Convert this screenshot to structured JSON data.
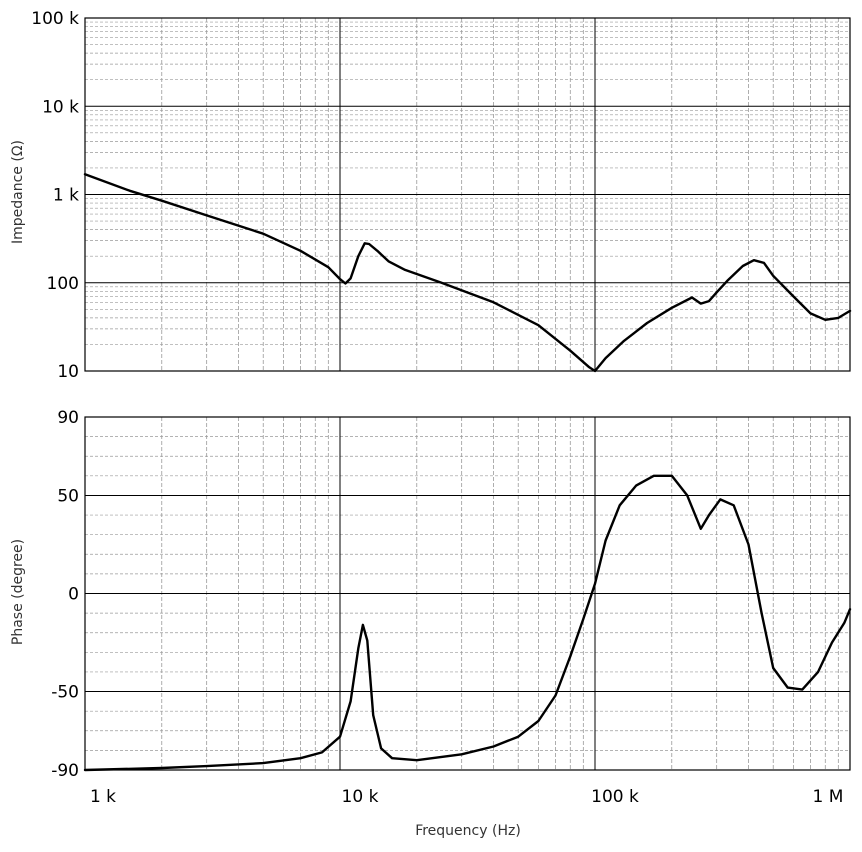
{
  "chart_data": [
    {
      "type": "line",
      "ylabel": "Impedance (Ω)",
      "x_scale": "log",
      "y_scale": "log",
      "xlim": [
        1000,
        1000000
      ],
      "ylim": [
        10,
        100000
      ],
      "x_tick_labels": [
        "1 k",
        "10 k",
        "100 k",
        "1 M"
      ],
      "x_ticks": [
        1000,
        10000,
        100000,
        1000000
      ],
      "y_tick_labels": [
        "10",
        "100",
        "1 k",
        "10 k",
        "100 k"
      ],
      "y_ticks": [
        10,
        100,
        1000,
        10000,
        100000
      ],
      "grid": true,
      "series": [
        {
          "x": [
            1000,
            1500,
            2000,
            3000,
            5000,
            7000,
            9000,
            10000,
            10500,
            11000,
            11800,
            12500,
            13000,
            14000,
            15500,
            18000,
            25000,
            40000,
            60000,
            80000,
            95000,
            100000,
            110000,
            130000,
            160000,
            200000,
            240000,
            260000,
            280000,
            300000,
            330000,
            380000,
            420000,
            460000,
            500000,
            600000,
            700000,
            800000,
            900000,
            1000000
          ],
          "y": [
            1700,
            1100,
            850,
            580,
            360,
            230,
            150,
            110,
            98,
            112,
            200,
            280,
            275,
            230,
            175,
            140,
            100,
            60,
            33,
            17,
            11,
            10,
            14,
            22,
            35,
            52,
            68,
            58,
            62,
            78,
            105,
            155,
            180,
            168,
            120,
            70,
            45,
            38,
            40,
            48
          ]
        }
      ]
    },
    {
      "type": "line",
      "xlabel": "Frequency (Hz)",
      "ylabel": "Phase (degree)",
      "x_scale": "log",
      "xlim": [
        1000,
        1000000
      ],
      "ylim": [
        -90,
        90
      ],
      "x_tick_labels": [
        "1 k",
        "10 k",
        "100 k",
        "1 M"
      ],
      "x_ticks": [
        1000,
        10000,
        100000,
        1000000
      ],
      "y_tick_labels": [
        "-90",
        "-50",
        "0",
        "50",
        "90"
      ],
      "y_ticks": [
        -90,
        -50,
        0,
        50,
        90
      ],
      "grid": true,
      "series": [
        {
          "x": [
            1000,
            2000,
            3000,
            5000,
            7000,
            8500,
            10000,
            11000,
            11800,
            12300,
            12800,
            13500,
            14500,
            16000,
            20000,
            30000,
            40000,
            50000,
            60000,
            70000,
            80000,
            90000,
            100000,
            110000,
            125000,
            145000,
            170000,
            200000,
            230000,
            260000,
            280000,
            310000,
            350000,
            400000,
            450000,
            500000,
            570000,
            650000,
            750000,
            850000,
            950000,
            1000000
          ],
          "y": [
            -90,
            -89,
            -88,
            -86.5,
            -84,
            -81,
            -73,
            -55,
            -28,
            -16,
            -24,
            -62,
            -79,
            -84,
            -85,
            -82,
            -78,
            -73,
            -65,
            -52,
            -32,
            -13,
            5,
            27,
            45,
            55,
            60,
            60,
            50,
            33,
            40,
            48,
            45,
            25,
            -10,
            -38,
            -48,
            -49,
            -40,
            -25,
            -15,
            -8
          ]
        }
      ]
    }
  ]
}
